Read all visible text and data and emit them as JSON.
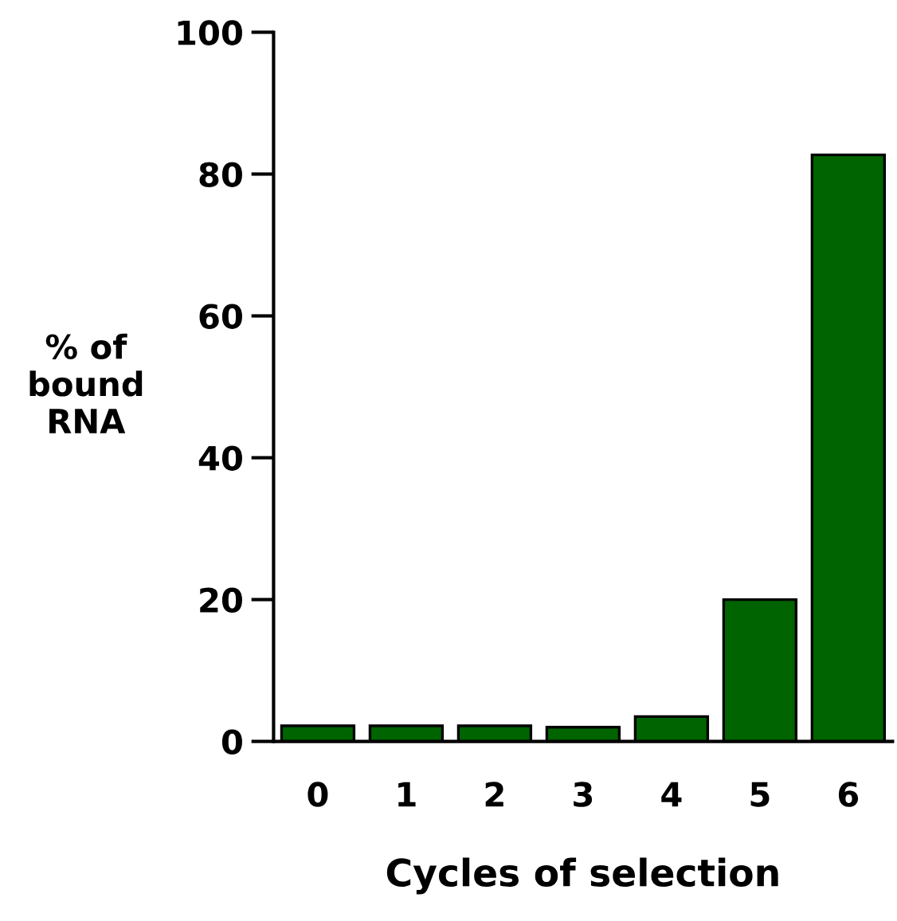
{
  "chart_data": {
    "type": "bar",
    "xlabel": "Cycles of selection",
    "ylabel": "% of\nbound\nRNA",
    "categories": [
      "0",
      "1",
      "2",
      "3",
      "4",
      "5",
      "6"
    ],
    "values": [
      2.2,
      2.2,
      2.2,
      2.0,
      3.5,
      20,
      82.7
    ],
    "color": "#006400",
    "ylim": [
      0,
      100
    ],
    "yticks": [
      0,
      20,
      40,
      60,
      80,
      100
    ],
    "grid": false
  }
}
